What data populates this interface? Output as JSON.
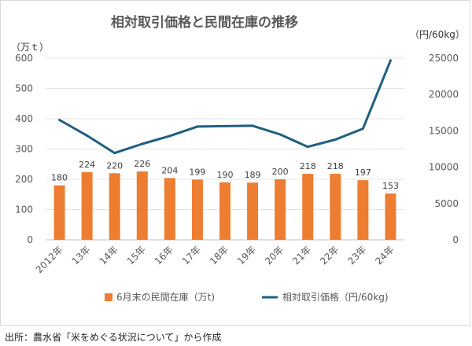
{
  "chart_data": {
    "type": "bar+line",
    "title": "相対取引価格と民間在庫の推移",
    "categories": [
      "2012年",
      "13年",
      "14年",
      "15年",
      "16年",
      "17年",
      "18年",
      "19年",
      "20年",
      "21年",
      "22年",
      "23年",
      "24年"
    ],
    "y_left_unit": "（万ｔ）",
    "y_right_unit": "（円/60kg）",
    "ylim_left": [
      0,
      600
    ],
    "ylim_right": [
      0,
      25000
    ],
    "yticks_left": [
      "0",
      "100",
      "200",
      "300",
      "400",
      "500",
      "600"
    ],
    "yticks_right": [
      "0",
      "5000",
      "10000",
      "15000",
      "20000",
      "25000"
    ],
    "grid": true,
    "legend_position": "bottom",
    "series": [
      {
        "name": "6月末の民間在庫（万t)",
        "type": "bar",
        "axis": "left",
        "color": "#ed7d31",
        "values": [
          180,
          224,
          220,
          226,
          204,
          199,
          190,
          189,
          200,
          218,
          218,
          197,
          153
        ],
        "labels": [
          "180",
          "224",
          "220",
          "226",
          "204",
          "199",
          "190",
          "189",
          "200",
          "218",
          "218",
          "197",
          "153"
        ]
      },
      {
        "name": "相対取引価格（円/60kg)",
        "type": "line",
        "axis": "right",
        "color": "#1f5f80",
        "values": [
          16500,
          14350,
          11950,
          13200,
          14300,
          15600,
          15650,
          15700,
          14500,
          12800,
          13800,
          15300,
          24700
        ]
      }
    ]
  },
  "source_note": "出所：農水省「米をめぐる状況について」から作成"
}
